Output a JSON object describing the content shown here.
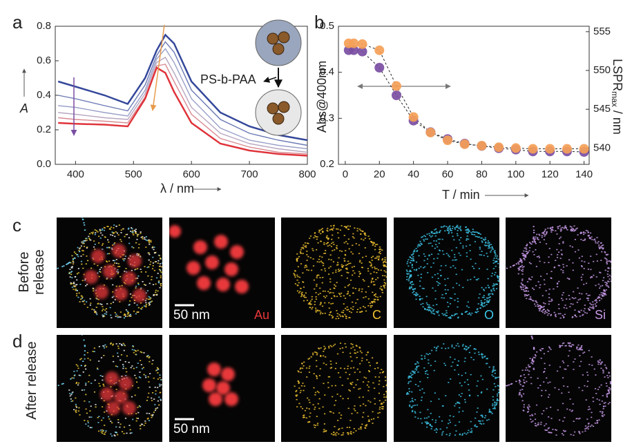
{
  "chart_data": [
    {
      "type": "line",
      "panel": "a",
      "xlabel": "λ / nm",
      "ylabel": "A",
      "annotations": [
        "PS-b-PAA"
      ],
      "x": [
        370,
        400,
        450,
        490,
        520,
        540,
        555,
        570,
        600,
        650,
        700,
        750,
        800
      ],
      "series": [
        {
          "color": "#34479a",
          "values": [
            0.48,
            0.45,
            0.4,
            0.35,
            0.5,
            0.66,
            0.75,
            0.7,
            0.48,
            0.3,
            0.22,
            0.17,
            0.14
          ]
        },
        {
          "color": "#6a78b4",
          "values": [
            0.4,
            0.38,
            0.34,
            0.31,
            0.46,
            0.63,
            0.71,
            0.65,
            0.43,
            0.26,
            0.18,
            0.14,
            0.11
          ]
        },
        {
          "color": "#9aa0c8",
          "values": [
            0.34,
            0.33,
            0.3,
            0.28,
            0.43,
            0.61,
            0.67,
            0.59,
            0.38,
            0.21,
            0.14,
            0.11,
            0.09
          ]
        },
        {
          "color": "#b7a6c0",
          "values": [
            0.3,
            0.29,
            0.27,
            0.26,
            0.41,
            0.59,
            0.62,
            0.53,
            0.33,
            0.18,
            0.12,
            0.09,
            0.07
          ]
        },
        {
          "color": "#d88a92",
          "values": [
            0.27,
            0.26,
            0.25,
            0.24,
            0.39,
            0.57,
            0.58,
            0.48,
            0.29,
            0.15,
            0.1,
            0.07,
            0.06
          ]
        },
        {
          "color": "#e0333a",
          "values": [
            0.24,
            0.235,
            0.23,
            0.22,
            0.38,
            0.56,
            0.53,
            0.42,
            0.24,
            0.12,
            0.08,
            0.06,
            0.05
          ]
        }
      ],
      "xlim": [
        365,
        800
      ],
      "ylim": [
        0,
        0.8
      ],
      "xticks": [
        400,
        500,
        600,
        700,
        800
      ],
      "yticks": [
        {
          "value": 0,
          "label": "0.0"
        },
        0.2,
        0.4,
        0.6,
        0.8
      ]
    },
    {
      "type": "scatter",
      "panel": "b",
      "xlabel": "T / min",
      "ylabel": "Abs@400nm",
      "y2label": [
        "LSPR",
        "max",
        " / nm"
      ],
      "x": [
        2,
        5,
        10,
        20,
        30,
        40,
        50,
        60,
        70,
        80,
        90,
        100,
        110,
        120,
        130,
        140
      ],
      "series": [
        {
          "color": "#7a4ea3",
          "values": [
            0.448,
            0.448,
            0.445,
            0.41,
            0.35,
            0.295,
            0.27,
            0.255,
            0.245,
            0.24,
            0.235,
            0.232,
            0.228,
            0.228,
            0.228,
            0.227
          ]
        },
        {
          "color": "#f5a057",
          "axis": "y2",
          "values": [
            553.5,
            553.5,
            553.4,
            552.6,
            548,
            544,
            542,
            541,
            540.5,
            540.3,
            540.1,
            540,
            539.9,
            539.9,
            539.9,
            539.9
          ]
        }
      ],
      "xlim": [
        -4,
        143
      ],
      "ylim": [
        0.2,
        0.5
      ],
      "y2lim": [
        537.9,
        555.7
      ],
      "xticks": [
        0,
        20,
        40,
        60,
        80,
        100,
        120,
        140
      ],
      "yticks": [
        0.2,
        0.3,
        0.4,
        0.5
      ],
      "y2ticks": [
        540,
        545,
        550,
        555
      ]
    }
  ],
  "maps": [
    {
      "panel": "c",
      "row_label": "Before release",
      "scale_bar": "50 nm",
      "channels": [
        "Au",
        "C",
        "O",
        "Si"
      ]
    },
    {
      "panel": "d",
      "row_label": "After release",
      "scale_bar": "50 nm"
    }
  ]
}
